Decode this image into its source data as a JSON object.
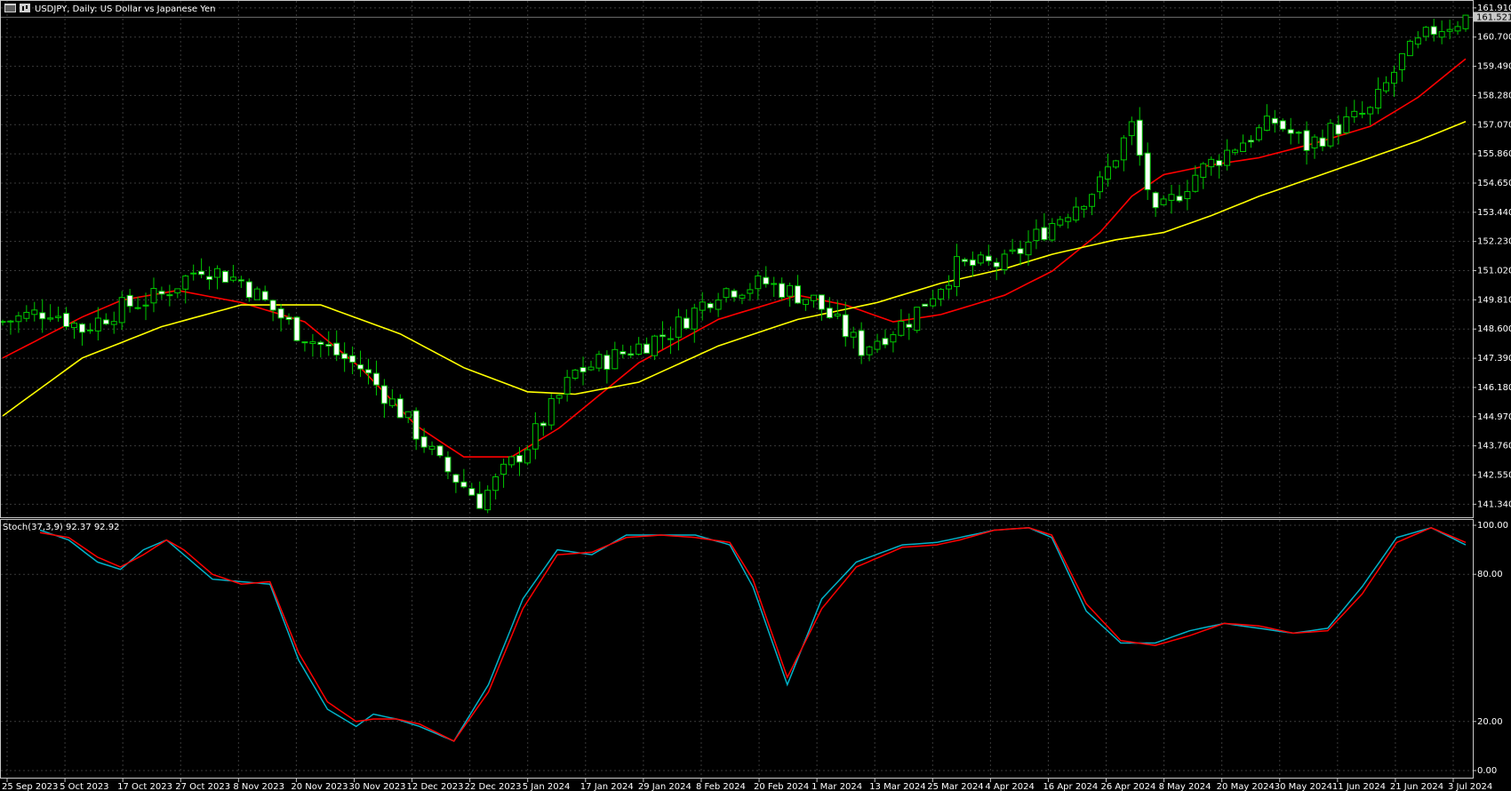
{
  "header": {
    "symbol_title": "USDJPY, Daily:  US Dollar vs Japanese Yen",
    "current_price": "161.521"
  },
  "indicator": {
    "label": "Stoch(37,3,9) 92.37 92.92"
  },
  "colors": {
    "background": "#000000",
    "grid": "#3a3a3a",
    "frame": "#c8c8c8",
    "bull_candle": "#000000",
    "bull_wick": "#00c800",
    "bear_candle": "#ffffff",
    "ma_fast": "#ff0000",
    "ma_slow": "#ffff00",
    "stoch_main": "#00b2c8",
    "stoch_signal": "#ff0000",
    "price_tag": "#c8c8c8"
  },
  "icons": [
    "chart-window-icon",
    "candlestick-icon"
  ],
  "chart_data": [
    {
      "type": "candlestick",
      "ylim": [
        140.8,
        162.2
      ],
      "y_ticks": [
        "161.910",
        "160.700",
        "159.490",
        "158.280",
        "157.070",
        "155.860",
        "154.650",
        "153.440",
        "152.230",
        "151.020",
        "149.810",
        "148.600",
        "147.390",
        "146.180",
        "144.970",
        "143.760",
        "142.550",
        "141.340"
      ],
      "x_ticks": [
        "25 Sep 2023",
        "5 Oct 2023",
        "17 Oct 2023",
        "27 Oct 2023",
        "8 Nov 2023",
        "20 Nov 2023",
        "30 Nov 2023",
        "12 Dec 2023",
        "22 Dec 2023",
        "5 Jan 2024",
        "17 Jan 2024",
        "29 Jan 2024",
        "8 Feb 2024",
        "20 Feb 2024",
        "1 Mar 2024",
        "13 Mar 2024",
        "25 Mar 2024",
        "4 Apr 2024",
        "16 Apr 2024",
        "26 Apr 2024",
        "8 May 2024",
        "20 May 2024",
        "30 May 2024",
        "11 Jun 2024",
        "21 Jun 2024",
        "3 Jul 2024"
      ],
      "close_anchors": [
        [
          0,
          148.9
        ],
        [
          6,
          149.4
        ],
        [
          10,
          148.6
        ],
        [
          15,
          149.5
        ],
        [
          20,
          150.0
        ],
        [
          25,
          151.2
        ],
        [
          30,
          150.6
        ],
        [
          37,
          148.5
        ],
        [
          45,
          147.0
        ],
        [
          50,
          145.2
        ],
        [
          55,
          143.0
        ],
        [
          60,
          141.5
        ],
        [
          66,
          143.8
        ],
        [
          72,
          146.8
        ],
        [
          78,
          147.6
        ],
        [
          84,
          148.5
        ],
        [
          90,
          150.2
        ],
        [
          96,
          150.5
        ],
        [
          102,
          149.8
        ],
        [
          108,
          147.8
        ],
        [
          114,
          149.0
        ],
        [
          120,
          151.2
        ],
        [
          126,
          151.3
        ],
        [
          132,
          153.0
        ],
        [
          138,
          154.6
        ],
        [
          142,
          157.0
        ],
        [
          145,
          153.2
        ],
        [
          150,
          155.0
        ],
        [
          155,
          156.2
        ],
        [
          160,
          157.2
        ],
        [
          164,
          156.2
        ],
        [
          168,
          157.0
        ],
        [
          172,
          157.6
        ],
        [
          176,
          159.8
        ],
        [
          180,
          161.0
        ],
        [
          184,
          161.5
        ]
      ],
      "series": [
        {
          "name": "MA fast",
          "anchors": [
            [
              0,
              147.4
            ],
            [
              10,
              149.1
            ],
            [
              15,
              149.8
            ],
            [
              22,
              150.2
            ],
            [
              30,
              149.7
            ],
            [
              38,
              148.9
            ],
            [
              45,
              147.0
            ],
            [
              52,
              144.6
            ],
            [
              58,
              143.3
            ],
            [
              64,
              143.3
            ],
            [
              70,
              144.5
            ],
            [
              80,
              147.2
            ],
            [
              90,
              149.0
            ],
            [
              100,
              150.0
            ],
            [
              106,
              149.6
            ],
            [
              112,
              148.9
            ],
            [
              118,
              149.2
            ],
            [
              126,
              150.0
            ],
            [
              132,
              151.0
            ],
            [
              138,
              152.6
            ],
            [
              142,
              154.1
            ],
            [
              146,
              155.0
            ],
            [
              152,
              155.4
            ],
            [
              158,
              155.7
            ],
            [
              165,
              156.3
            ],
            [
              172,
              157.0
            ],
            [
              178,
              158.2
            ],
            [
              184,
              159.8
            ]
          ]
        },
        {
          "name": "MA slow",
          "anchors": [
            [
              0,
              145.0
            ],
            [
              10,
              147.4
            ],
            [
              20,
              148.7
            ],
            [
              30,
              149.6
            ],
            [
              40,
              149.6
            ],
            [
              50,
              148.4
            ],
            [
              58,
              147.0
            ],
            [
              66,
              146.0
            ],
            [
              72,
              145.9
            ],
            [
              80,
              146.4
            ],
            [
              90,
              147.9
            ],
            [
              100,
              149.0
            ],
            [
              110,
              149.7
            ],
            [
              118,
              150.5
            ],
            [
              126,
              151.1
            ],
            [
              132,
              151.7
            ],
            [
              140,
              152.3
            ],
            [
              146,
              152.6
            ],
            [
              152,
              153.3
            ],
            [
              158,
              154.1
            ],
            [
              165,
              154.9
            ],
            [
              172,
              155.7
            ],
            [
              178,
              156.4
            ],
            [
              184,
              157.2
            ]
          ]
        }
      ]
    },
    {
      "type": "line",
      "title": "Stoch(37,3,9) 92.37 92.92",
      "ylim": [
        0,
        100
      ],
      "y_ticks": [
        "100.00",
        "80.00",
        "20.00",
        "0.00"
      ],
      "series": [
        {
          "name": "main",
          "anchors": [
            [
              0,
              98
            ],
            [
              5,
              94
            ],
            [
              10,
              85
            ],
            [
              14,
              82
            ],
            [
              18,
              90
            ],
            [
              22,
              94
            ],
            [
              25,
              88
            ],
            [
              30,
              78
            ],
            [
              35,
              77
            ],
            [
              40,
              76
            ],
            [
              45,
              45
            ],
            [
              50,
              25
            ],
            [
              55,
              18
            ],
            [
              58,
              23
            ],
            [
              62,
              21
            ],
            [
              66,
              18
            ],
            [
              72,
              12
            ],
            [
              78,
              35
            ],
            [
              84,
              70
            ],
            [
              90,
              90
            ],
            [
              96,
              88
            ],
            [
              102,
              96
            ],
            [
              108,
              96
            ],
            [
              114,
              96
            ],
            [
              120,
              92
            ],
            [
              124,
              75
            ],
            [
              130,
              35
            ],
            [
              136,
              70
            ],
            [
              142,
              85
            ],
            [
              150,
              92
            ],
            [
              156,
              93
            ],
            [
              160,
              95
            ],
            [
              166,
              98
            ],
            [
              172,
              99
            ],
            [
              176,
              95
            ],
            [
              182,
              65
            ],
            [
              188,
              52
            ],
            [
              194,
              52
            ],
            [
              200,
              57
            ],
            [
              206,
              60
            ],
            [
              212,
              58
            ],
            [
              218,
              56
            ],
            [
              224,
              58
            ],
            [
              230,
              75
            ],
            [
              236,
              95
            ],
            [
              242,
              99
            ],
            [
              248,
              92
            ]
          ]
        },
        {
          "name": "signal",
          "anchors": [
            [
              0,
              97
            ],
            [
              5,
              95
            ],
            [
              10,
              87
            ],
            [
              14,
              83
            ],
            [
              18,
              88
            ],
            [
              22,
              94
            ],
            [
              25,
              90
            ],
            [
              30,
              80
            ],
            [
              35,
              76
            ],
            [
              40,
              77
            ],
            [
              45,
              48
            ],
            [
              50,
              28
            ],
            [
              55,
              20
            ],
            [
              58,
              21
            ],
            [
              62,
              21
            ],
            [
              66,
              19
            ],
            [
              72,
              12
            ],
            [
              78,
              32
            ],
            [
              84,
              66
            ],
            [
              90,
              88
            ],
            [
              96,
              89
            ],
            [
              102,
              95
            ],
            [
              108,
              96
            ],
            [
              114,
              95
            ],
            [
              120,
              93
            ],
            [
              124,
              78
            ],
            [
              130,
              38
            ],
            [
              136,
              66
            ],
            [
              142,
              83
            ],
            [
              150,
              91
            ],
            [
              156,
              92
            ],
            [
              160,
              94
            ],
            [
              166,
              98
            ],
            [
              172,
              99
            ],
            [
              176,
              96
            ],
            [
              182,
              68
            ],
            [
              188,
              53
            ],
            [
              194,
              51
            ],
            [
              200,
              55
            ],
            [
              206,
              60
            ],
            [
              212,
              59
            ],
            [
              218,
              56
            ],
            [
              224,
              57
            ],
            [
              230,
              72
            ],
            [
              236,
              93
            ],
            [
              242,
              99
            ],
            [
              248,
              93
            ]
          ]
        }
      ]
    }
  ]
}
